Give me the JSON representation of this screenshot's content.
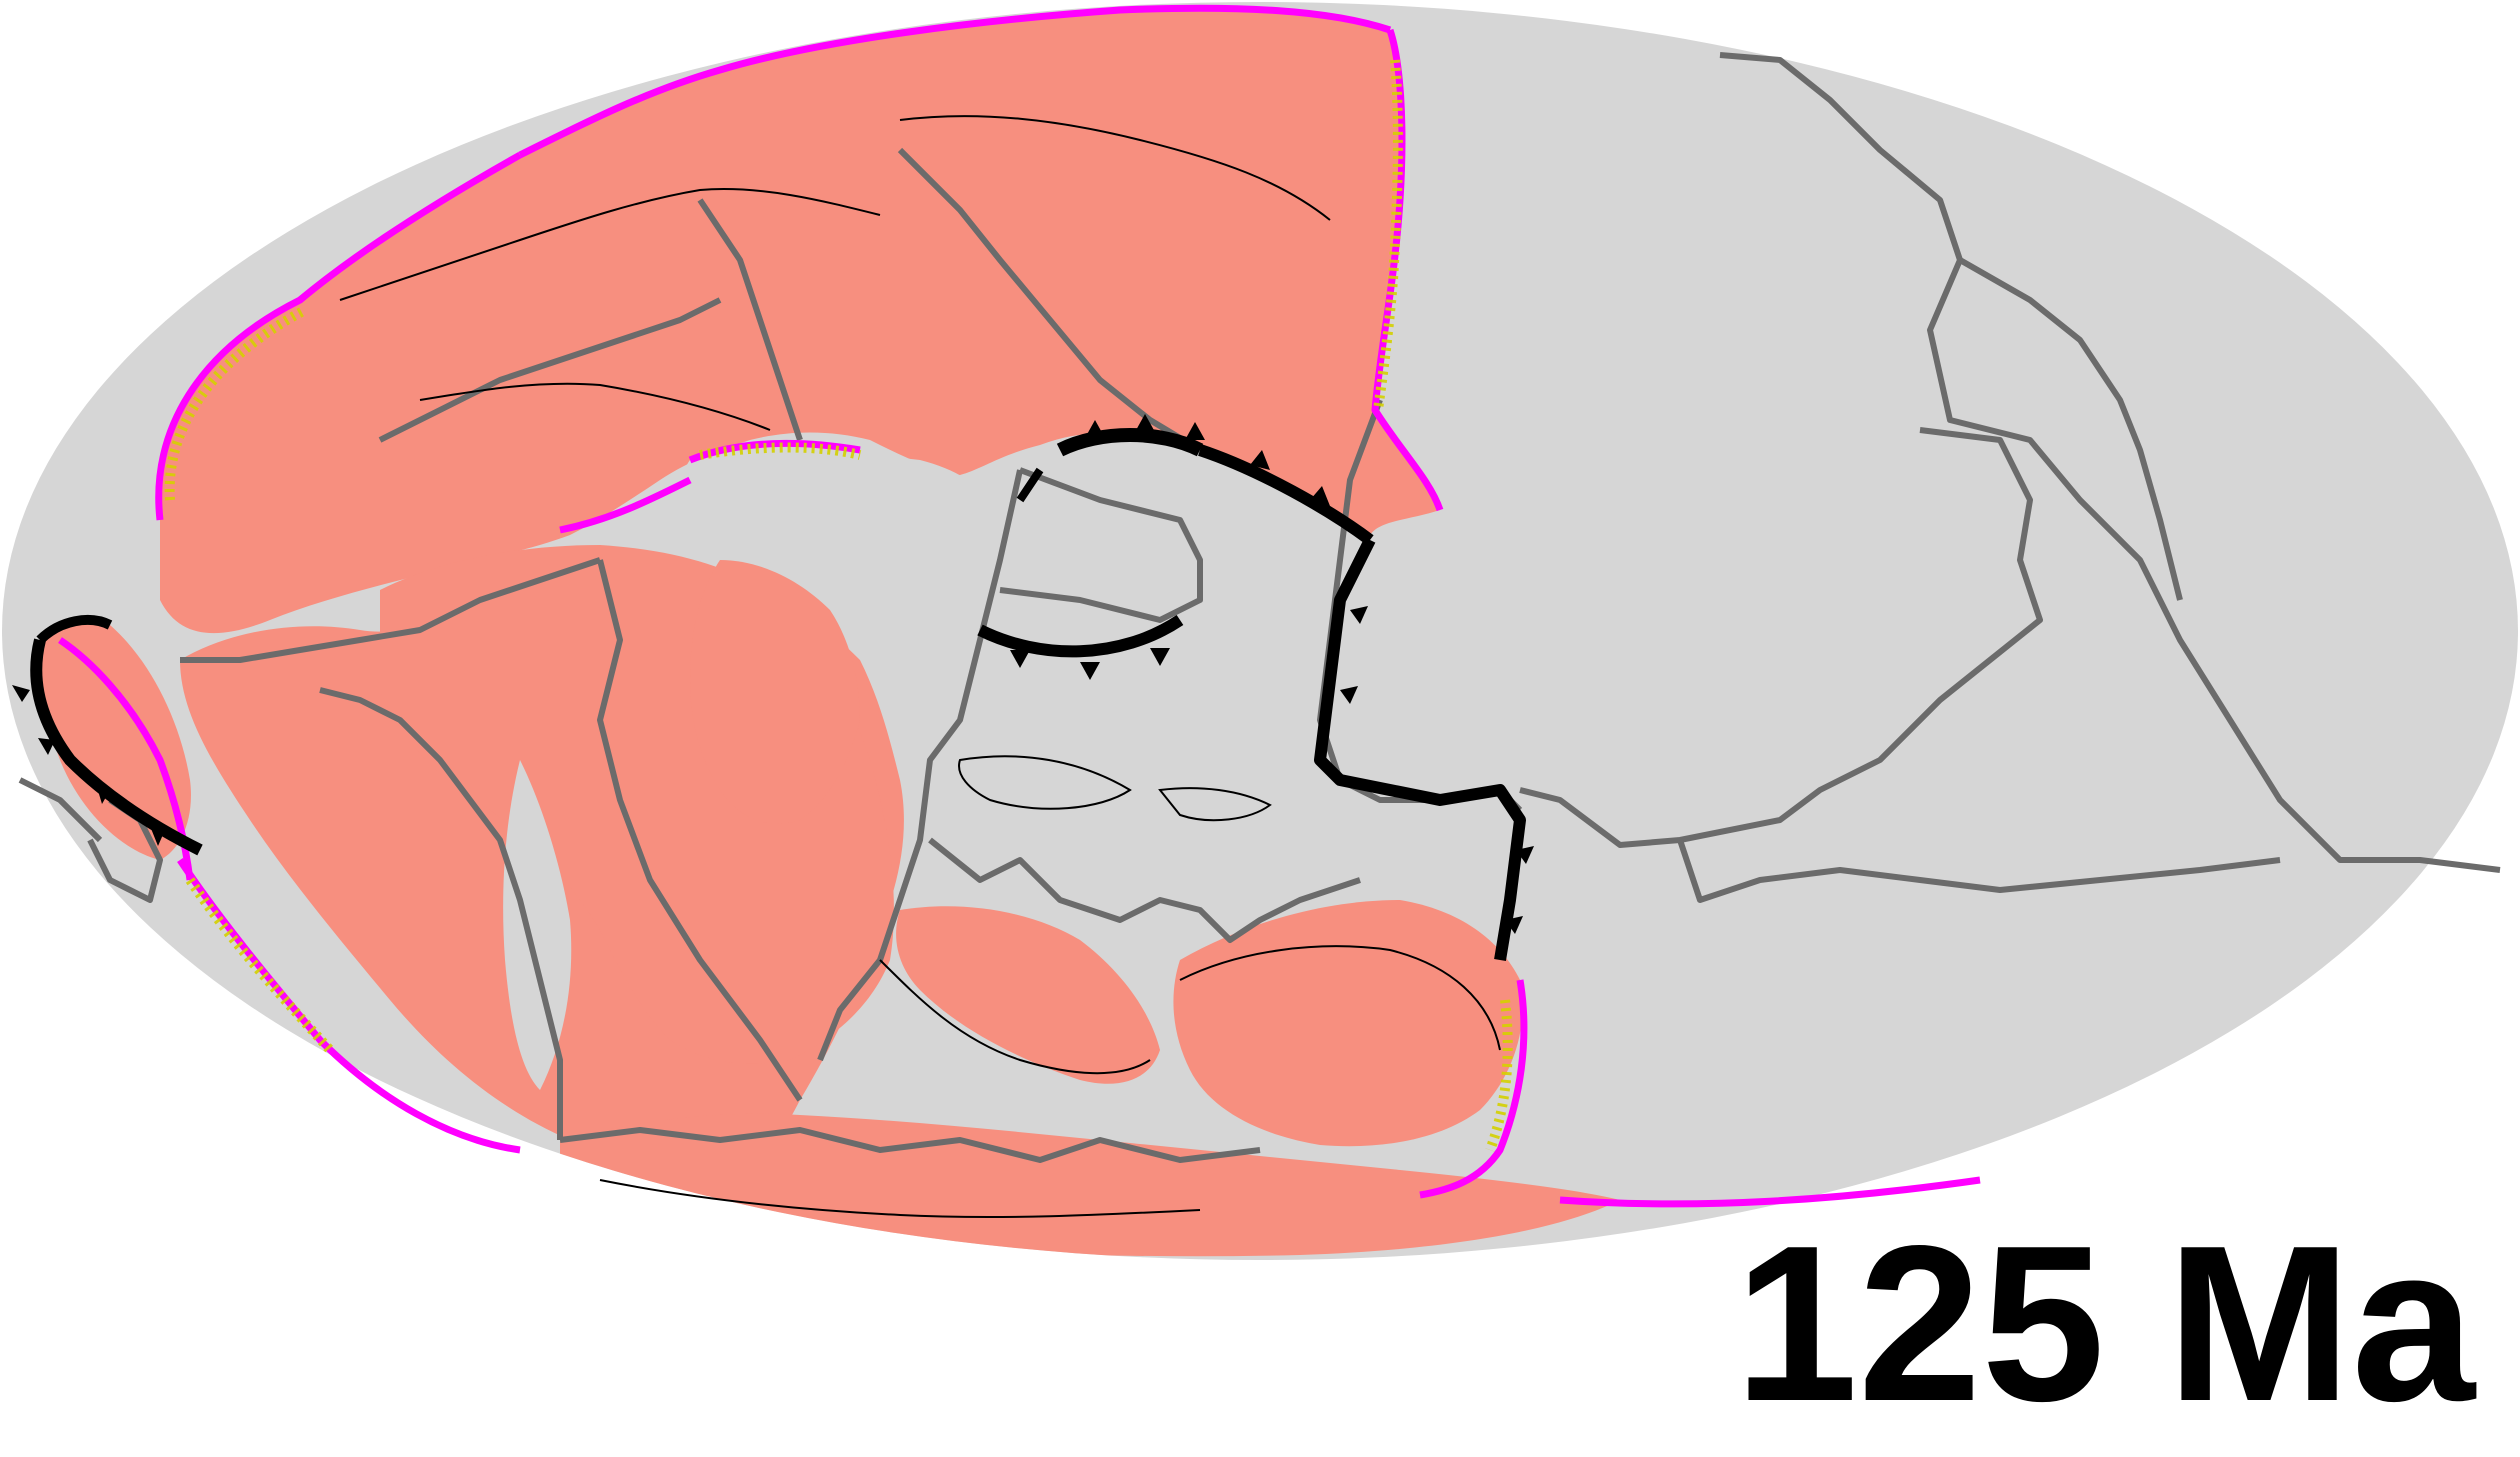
{
  "map": {
    "projection": "Mollweide",
    "age_label": "125 Ma",
    "colors": {
      "ocean": "#d6d6d6",
      "continent": "#f78f7f",
      "plate_boundary": "#6b6b6b",
      "coastline": "#000000",
      "subduction_zone": "#000000",
      "active_margin": "#ff00ff",
      "margin_hatch": "#d4d000"
    }
  }
}
